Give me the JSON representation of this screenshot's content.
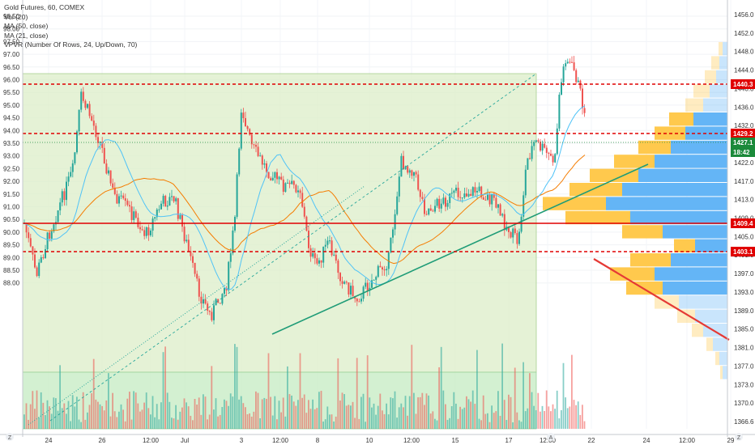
{
  "legend": {
    "title": "Gold Futures, 60, COMEX",
    "indicators": [
      "Vol (20)",
      "MA (50, close)",
      "MA (21, close)",
      "VPVR (Number Of Rows, 24, Up/Down, 70)"
    ]
  },
  "chart_data": {
    "type": "candlestick",
    "symbol": "Gold Futures",
    "interval": "60",
    "exchange": "COMEX",
    "left_axis": {
      "range": [
        87.75,
        98.6
      ],
      "ticks": [
        "98.50",
        "98.00",
        "97.50",
        "97.00",
        "96.50",
        "96.00",
        "95.50",
        "95.00",
        "94.50",
        "94.00",
        "93.50",
        "93.00",
        "92.50",
        "92.00",
        "91.50",
        "91.00",
        "90.50",
        "90.00",
        "89.50",
        "89.00",
        "88.50",
        "88.00"
      ]
    },
    "right_axis": {
      "ticks": [
        "1456.0",
        "1452.0",
        "1448.0",
        "1444.0",
        "1440.0",
        "1436.0",
        "1432.0",
        "1427.0",
        "1422.0",
        "1417.0",
        "1413.0",
        "1409.0",
        "1405.0",
        "1401.0",
        "1397.0",
        "1393.0",
        "1389.0",
        "1385.0",
        "1381.0",
        "1377.0",
        "1373.0",
        "1370.0",
        "1366.6"
      ]
    },
    "x_ticks": [
      "24",
      "26",
      "12:00",
      "Jul",
      "3",
      "12:00",
      "8",
      "10",
      "12:00",
      "15",
      "17",
      "12:00",
      "22",
      "24",
      "12:00",
      "29"
    ],
    "price_labels": [
      {
        "text": "1440.3",
        "color": "#e00000"
      },
      {
        "text": "1429.2",
        "color": "#e00000"
      },
      {
        "text": "1427.1",
        "color": "#1b8a3a"
      },
      {
        "text": "18:42",
        "color": "#1b8a3a"
      },
      {
        "text": "1409.4",
        "color": "#e00000"
      },
      {
        "text": "1403.1",
        "color": "#e00000"
      }
    ],
    "horizontal_levels": [
      {
        "label": "1440.3",
        "style": "dashed"
      },
      {
        "label": "1429.2",
        "style": "dashed"
      },
      {
        "label": "1409.4",
        "style": "solid"
      },
      {
        "label": "1403.1",
        "style": "dashed"
      }
    ],
    "left_axis_badges": [
      "Z",
      "Z",
      "A"
    ],
    "colors": {
      "up": "#26a69a",
      "down": "#ef5350",
      "ma50": "#f57c00",
      "ma21": "#4fc3f7",
      "level": "#e00000",
      "trendline": "#1f9c77",
      "range_fill": "#dcedc8",
      "vp_up": "#64b5f6",
      "vp_down": "#ffc94d"
    }
  }
}
